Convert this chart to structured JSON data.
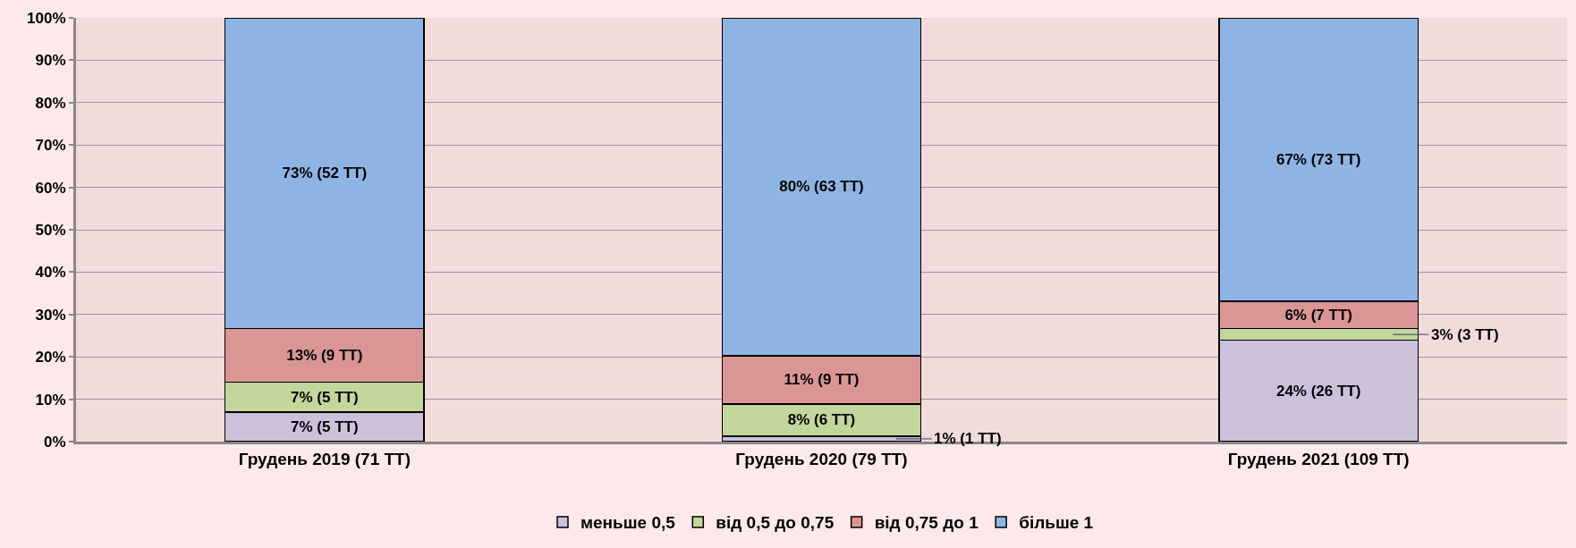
{
  "chart_data": {
    "type": "bar",
    "stacked": true,
    "categories": [
      "Грудень 2019 (71 ТТ)",
      "Грудень 2020 (79 ТТ)",
      "Грудень 2021 (109 ТТ)"
    ],
    "series": [
      {
        "name": "меньше 0,5",
        "color": "#ccc0da",
        "values": [
          7.0,
          1.3,
          23.9
        ],
        "value_labels": [
          "7% (5 ТТ)",
          "1% (1 ТТ)",
          "24% (26 ТТ)"
        ]
      },
      {
        "name": "від 0,5 до 0,75",
        "color": "#c3d69b",
        "values": [
          7.0,
          7.6,
          2.8
        ],
        "value_labels": [
          "7% (5 ТТ)",
          "8% (6 ТТ)",
          "3% (3 ТТ)"
        ]
      },
      {
        "name": "від 0,75 до 1",
        "color": "#d99694",
        "values": [
          12.7,
          11.4,
          6.4
        ],
        "value_labels": [
          "13% (9 ТТ)",
          "11% (9 ТТ)",
          "6% (7 ТТ)"
        ]
      },
      {
        "name": "більше 1",
        "color": "#8eb4e3",
        "values": [
          73.3,
          79.7,
          66.9
        ],
        "value_labels": [
          "73% (52 ТТ)",
          "80% (63 ТТ)",
          "67% (73 ТТ)"
        ]
      }
    ],
    "ylim": [
      0,
      100
    ],
    "yticks": [
      {
        "value": 0,
        "label": "0%"
      },
      {
        "value": 10,
        "label": "10%"
      },
      {
        "value": 20,
        "label": "20%"
      },
      {
        "value": 30,
        "label": "30%"
      },
      {
        "value": 40,
        "label": "40%"
      },
      {
        "value": 50,
        "label": "50%"
      },
      {
        "value": 60,
        "label": "60%"
      },
      {
        "value": 70,
        "label": "70%"
      },
      {
        "value": 80,
        "label": "80%"
      },
      {
        "value": 90,
        "label": "90%"
      },
      {
        "value": 100,
        "label": "100%"
      }
    ],
    "grid": "y",
    "legend": "bottom"
  }
}
